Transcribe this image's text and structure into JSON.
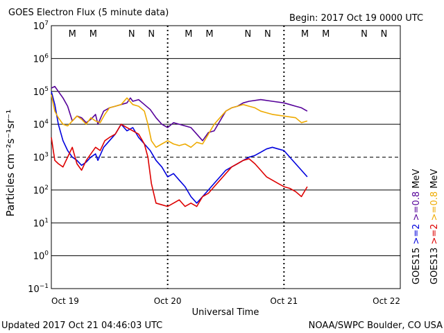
{
  "chart_data": {
    "type": "line",
    "title": "GOES Electron Flux (5 minute data)",
    "begin_label": "Begin: 2017 Oct 19 0000 UTC",
    "xlabel": "Universal Time",
    "ylabel": "Particles cm⁻²s⁻¹sr⁻¹",
    "x_unit": "days since 2017 Oct 19 0000 UTC",
    "xlim": [
      0,
      3
    ],
    "x_ticks": [
      {
        "x": 0,
        "label": "Oct 19"
      },
      {
        "x": 1,
        "label": "Oct 20"
      },
      {
        "x": 2,
        "label": "Oct 21"
      },
      {
        "x": 3,
        "label": "Oct 22"
      }
    ],
    "y_scale": "log",
    "ylim_exp": [
      -1,
      7
    ],
    "y_ticks": [
      {
        "e": 7,
        "label": "10",
        "exp": "7"
      },
      {
        "e": 6,
        "label": "10",
        "exp": "6"
      },
      {
        "e": 5,
        "label": "10",
        "exp": "5"
      },
      {
        "e": 4,
        "label": "10",
        "exp": "4"
      },
      {
        "e": 3,
        "label": "10",
        "exp": "3"
      },
      {
        "e": 2,
        "label": "10",
        "exp": "2"
      },
      {
        "e": 1,
        "label": "10",
        "exp": "1"
      },
      {
        "e": 0,
        "label": "10",
        "exp": "0"
      },
      {
        "e": -1,
        "label": "10",
        "exp": "−1"
      }
    ],
    "threshold_log": 3,
    "magnetopause_markers": [
      {
        "x": 0.18,
        "label": "M",
        "color": "#dd0000"
      },
      {
        "x": 0.36,
        "label": "M",
        "color": "#0000cc"
      },
      {
        "x": 0.69,
        "label": "N",
        "color": "#dd0000"
      },
      {
        "x": 0.86,
        "label": "N",
        "color": "#0000cc"
      },
      {
        "x": 1.18,
        "label": "M",
        "color": "#dd0000"
      },
      {
        "x": 1.36,
        "label": "M",
        "color": "#0000cc"
      },
      {
        "x": 1.69,
        "label": "N",
        "color": "#dd0000"
      },
      {
        "x": 1.86,
        "label": "N",
        "color": "#0000cc"
      },
      {
        "x": 2.18,
        "label": "M",
        "color": "#dd0000"
      },
      {
        "x": 2.36,
        "label": "M",
        "color": "#0000cc"
      },
      {
        "x": 2.69,
        "label": "N",
        "color": "#dd0000"
      },
      {
        "x": 2.86,
        "label": "N",
        "color": "#0000cc"
      }
    ],
    "series": [
      {
        "name": "GOES15 >=0.8 MeV",
        "color": "#550099",
        "x": [
          0.0,
          0.03,
          0.06,
          0.1,
          0.14,
          0.18,
          0.22,
          0.26,
          0.3,
          0.34,
          0.38,
          0.4,
          0.45,
          0.5,
          0.55,
          0.6,
          0.65,
          0.68,
          0.7,
          0.75,
          0.8,
          0.85,
          0.9,
          0.95,
          1.0,
          1.05,
          1.1,
          1.15,
          1.2,
          1.25,
          1.3,
          1.35,
          1.4,
          1.45,
          1.5,
          1.55,
          1.6,
          1.65,
          1.7,
          1.8,
          1.9,
          2.0,
          2.05,
          2.1,
          2.15,
          2.2
        ],
        "log": [
          5.1,
          5.15,
          5.0,
          4.8,
          4.55,
          4.1,
          4.25,
          4.2,
          4.05,
          4.15,
          4.3,
          4.0,
          4.4,
          4.5,
          4.55,
          4.6,
          4.65,
          4.8,
          4.7,
          4.75,
          4.6,
          4.45,
          4.2,
          4.0,
          3.9,
          4.05,
          4.0,
          3.95,
          3.9,
          3.7,
          3.5,
          3.75,
          3.8,
          4.1,
          4.4,
          4.5,
          4.55,
          4.65,
          4.7,
          4.75,
          4.7,
          4.65,
          4.6,
          4.55,
          4.5,
          4.4
        ]
      },
      {
        "name": "GOES15 >=2 MeV",
        "color": "#0000dd",
        "x": [
          0.0,
          0.03,
          0.06,
          0.1,
          0.14,
          0.18,
          0.22,
          0.26,
          0.3,
          0.34,
          0.38,
          0.4,
          0.45,
          0.5,
          0.55,
          0.6,
          0.65,
          0.7,
          0.75,
          0.8,
          0.85,
          0.9,
          0.95,
          1.0,
          1.05,
          1.1,
          1.15,
          1.2,
          1.25,
          1.3,
          1.35,
          1.4,
          1.45,
          1.5,
          1.55,
          1.6,
          1.65,
          1.7,
          1.75,
          1.8,
          1.85,
          1.9,
          1.95,
          2.0,
          2.05,
          2.1,
          2.15,
          2.2
        ],
        "log": [
          5.0,
          4.6,
          4.0,
          3.5,
          3.2,
          3.0,
          2.9,
          2.75,
          2.85,
          3.0,
          3.1,
          2.9,
          3.3,
          3.5,
          3.7,
          4.0,
          3.8,
          3.9,
          3.6,
          3.4,
          3.2,
          2.9,
          2.7,
          2.4,
          2.5,
          2.3,
          2.1,
          1.8,
          1.6,
          1.8,
          2.0,
          2.2,
          2.4,
          2.6,
          2.7,
          2.8,
          2.9,
          3.0,
          3.05,
          3.15,
          3.25,
          3.3,
          3.25,
          3.2,
          3.0,
          2.8,
          2.6,
          2.4
        ]
      },
      {
        "name": "GOES13 >=0.8 MeV",
        "color": "#eeaa00",
        "x": [
          0.0,
          0.03,
          0.06,
          0.1,
          0.14,
          0.18,
          0.22,
          0.26,
          0.3,
          0.34,
          0.38,
          0.42,
          0.46,
          0.5,
          0.55,
          0.6,
          0.65,
          0.7,
          0.75,
          0.8,
          0.83,
          0.86,
          0.9,
          0.95,
          1.0,
          1.05,
          1.1,
          1.15,
          1.2,
          1.25,
          1.3,
          1.35,
          1.4,
          1.45,
          1.5,
          1.55,
          1.6,
          1.65,
          1.7,
          1.75,
          1.8,
          1.9,
          2.0,
          2.1,
          2.15,
          2.2
        ],
        "log": [
          4.9,
          4.4,
          4.2,
          4.0,
          3.95,
          4.1,
          4.25,
          4.15,
          4.0,
          4.2,
          4.1,
          4.05,
          4.3,
          4.5,
          4.55,
          4.6,
          4.8,
          4.6,
          4.55,
          4.4,
          4.0,
          3.5,
          3.3,
          3.4,
          3.5,
          3.4,
          3.35,
          3.4,
          3.3,
          3.45,
          3.4,
          3.7,
          4.0,
          4.2,
          4.4,
          4.5,
          4.55,
          4.6,
          4.55,
          4.5,
          4.4,
          4.3,
          4.25,
          4.2,
          4.05,
          4.1
        ]
      },
      {
        "name": "GOES13 >=2 MeV",
        "color": "#dd0000",
        "x": [
          0.0,
          0.03,
          0.06,
          0.1,
          0.14,
          0.18,
          0.22,
          0.26,
          0.3,
          0.34,
          0.38,
          0.42,
          0.46,
          0.5,
          0.55,
          0.6,
          0.65,
          0.7,
          0.75,
          0.8,
          0.83,
          0.86,
          0.9,
          0.95,
          1.0,
          1.05,
          1.1,
          1.15,
          1.2,
          1.25,
          1.3,
          1.35,
          1.4,
          1.45,
          1.5,
          1.55,
          1.6,
          1.65,
          1.7,
          1.75,
          1.8,
          1.85,
          1.9,
          1.95,
          2.0,
          2.05,
          2.1,
          2.15,
          2.2
        ],
        "log": [
          3.6,
          2.9,
          2.8,
          2.7,
          3.0,
          3.3,
          2.8,
          2.6,
          2.9,
          3.1,
          3.3,
          3.2,
          3.5,
          3.6,
          3.7,
          4.0,
          3.9,
          3.8,
          3.7,
          3.4,
          3.0,
          2.2,
          1.6,
          1.55,
          1.5,
          1.6,
          1.7,
          1.5,
          1.6,
          1.5,
          1.8,
          1.9,
          2.1,
          2.3,
          2.5,
          2.7,
          2.8,
          2.9,
          2.95,
          2.8,
          2.6,
          2.4,
          2.3,
          2.2,
          2.1,
          2.05,
          1.95,
          1.8,
          2.1
        ]
      }
    ],
    "legend": {
      "left_col": [
        {
          "text": "GOES15",
          "color": "#000000"
        },
        {
          "text": ">=2",
          "color": "#0000dd"
        },
        {
          "text": ">=0.8",
          "color": "#550099"
        },
        {
          "text": "MeV",
          "color": "#000000"
        }
      ],
      "right_col": [
        {
          "text": "GOES13",
          "color": "#000000"
        },
        {
          "text": ">=2",
          "color": "#dd0000"
        },
        {
          "text": ">=0.8",
          "color": "#eeaa00"
        },
        {
          "text": "MeV",
          "color": "#000000"
        }
      ]
    }
  },
  "footer": {
    "updated": "Updated 2017 Oct 21 04:46:03 UTC",
    "credit": "NOAA/SWPC Boulder, CO USA"
  }
}
